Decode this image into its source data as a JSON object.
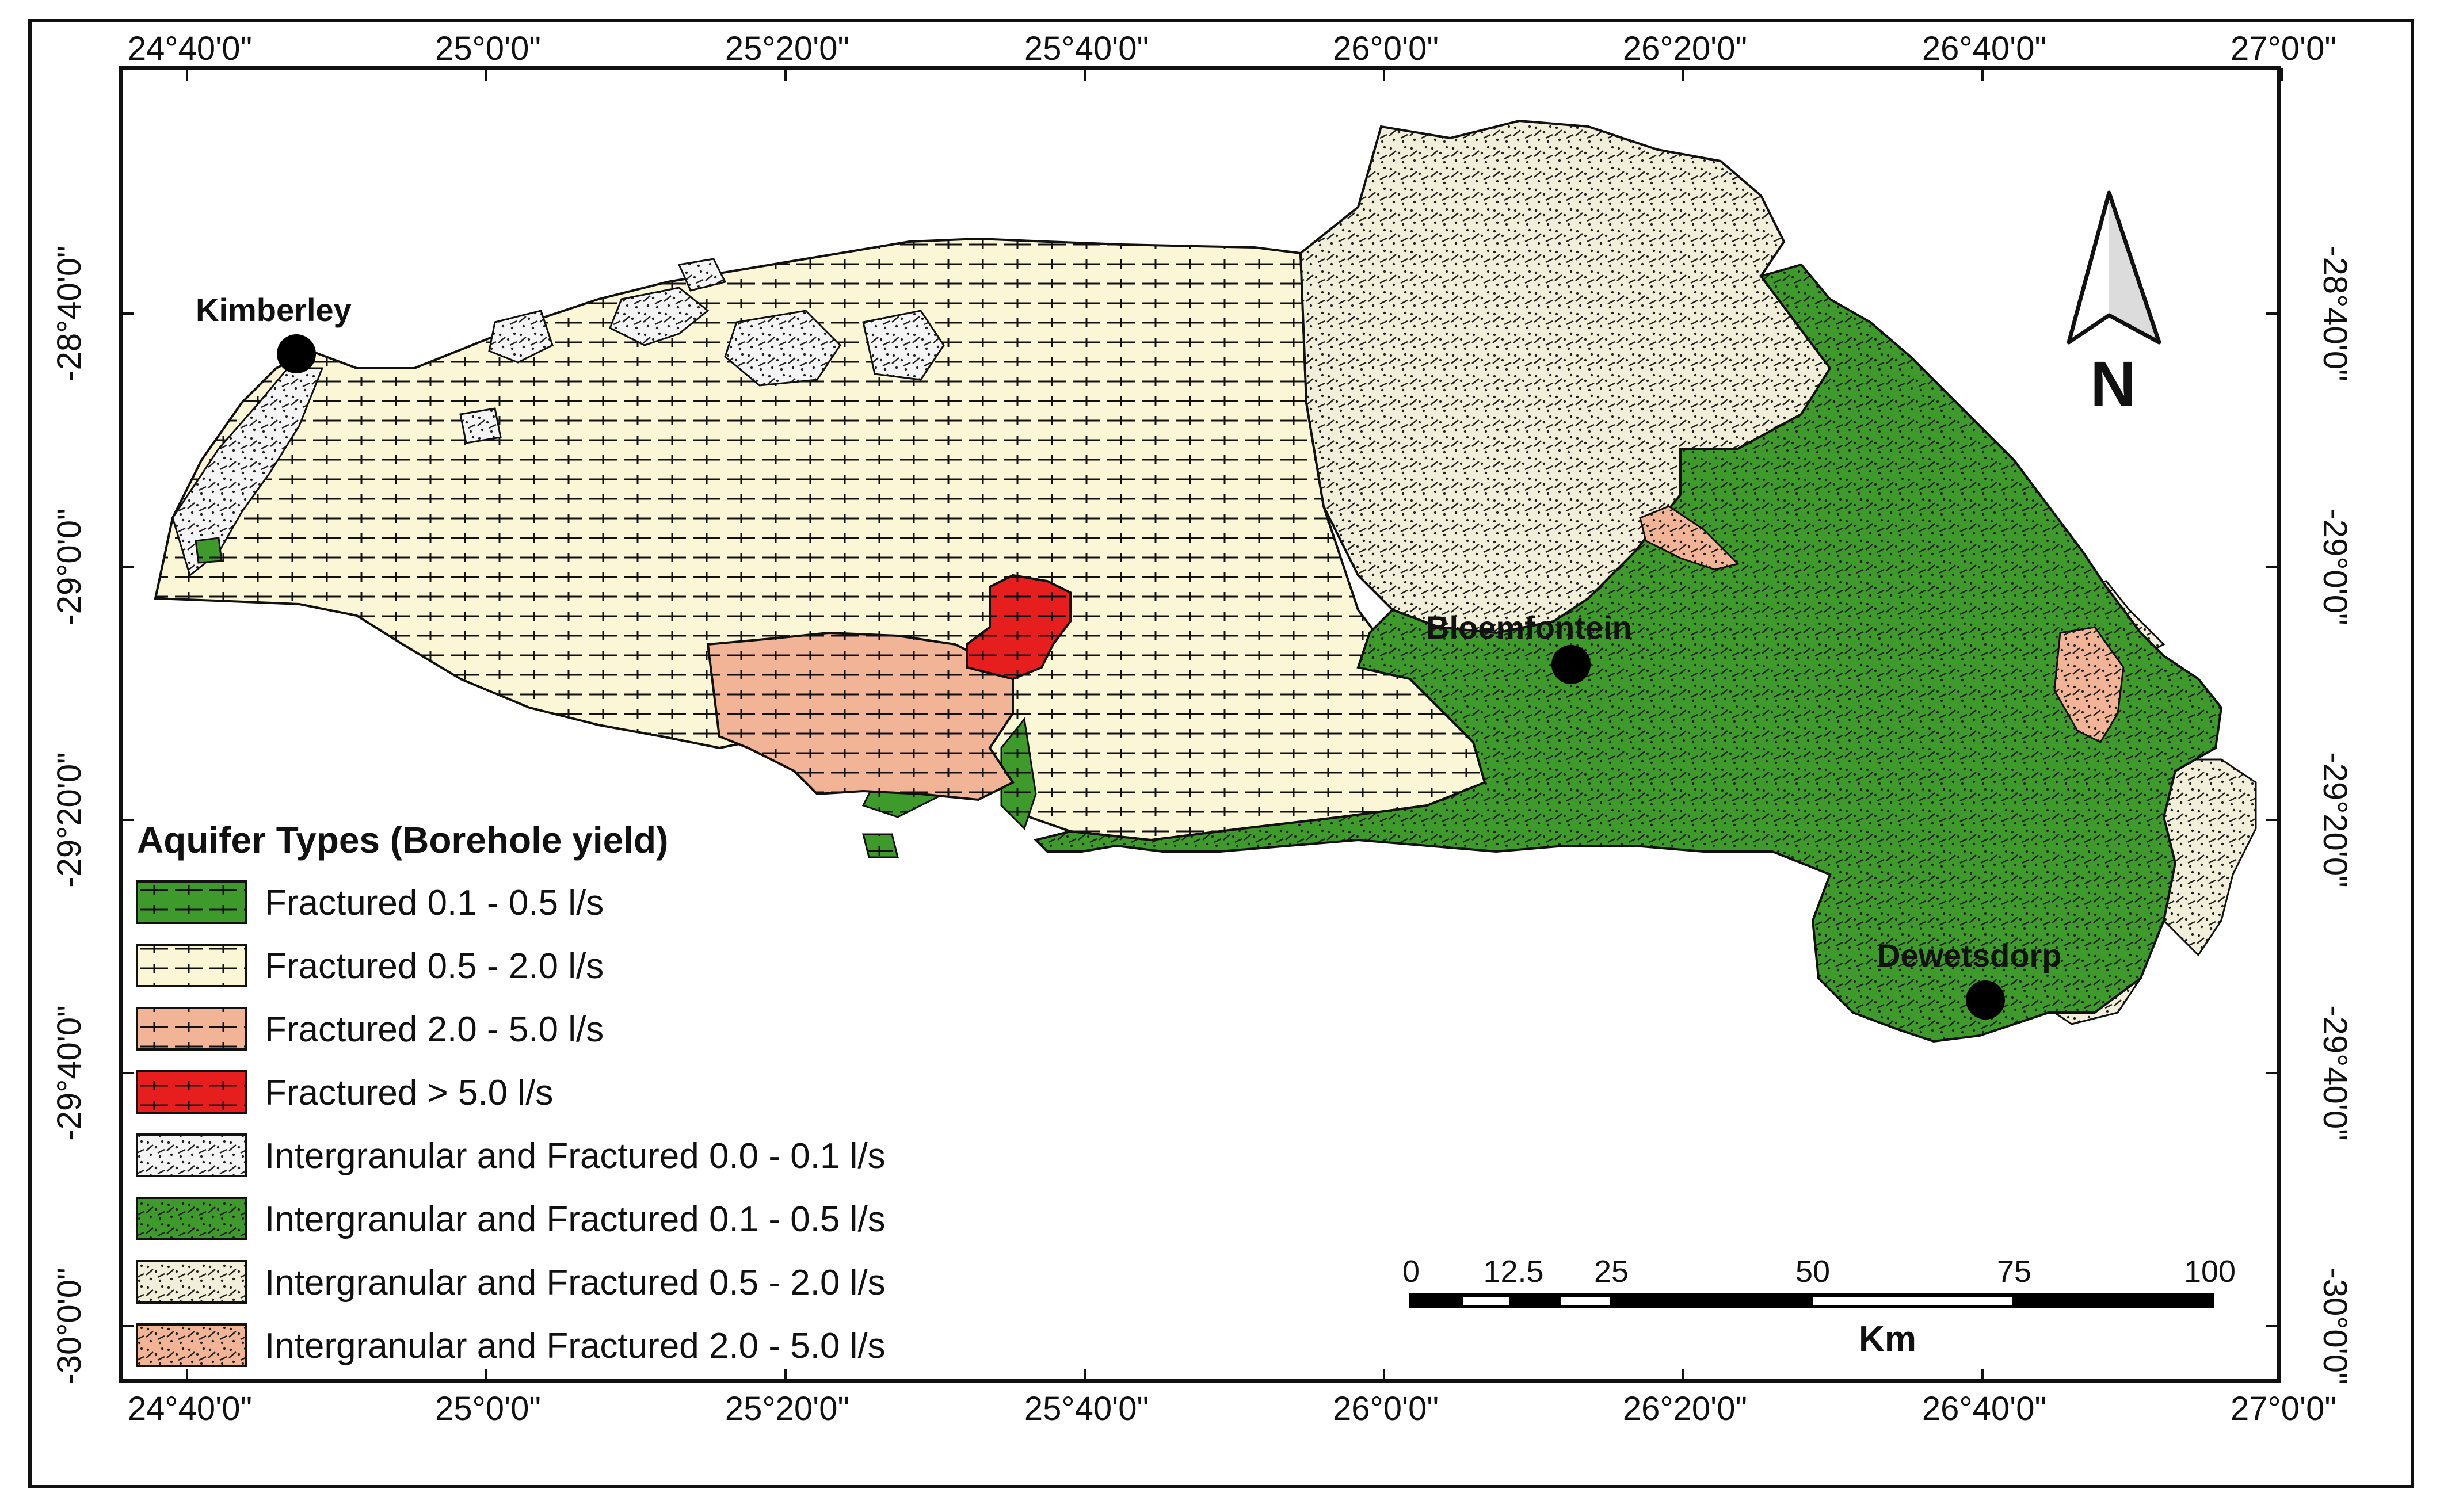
{
  "map": {
    "coordinate_labels": {
      "longitudes": [
        "24°40'0\"",
        "25°0'0\"",
        "25°20'0\"",
        "25°40'0\"",
        "26°0'0\"",
        "26°20'0\"",
        "26°40'0\"",
        "27°0'0\""
      ],
      "latitudes": [
        "-28°40'0\"",
        "-29°0'0\"",
        "-29°20'0\"",
        "-29°40'0\"",
        "-30°0'0\""
      ]
    },
    "cities": [
      {
        "name": "Kimberley"
      },
      {
        "name": "Bloemfontein"
      },
      {
        "name": "Dewetsdorp"
      }
    ],
    "legend": {
      "title": "Aquifer Types (Borehole yield)",
      "items": [
        {
          "label": "Fractured 0.1 - 0.5  l/s",
          "color": "#3e9a2a",
          "pattern": "fractured"
        },
        {
          "label": "Fractured 0.5 - 2.0 l/s",
          "color": "#fbf6d6",
          "pattern": "fractured"
        },
        {
          "label": "Fractured 2.0 - 5.0 l/s",
          "color": "#f2b497",
          "pattern": "fractured"
        },
        {
          "label": "Fractured > 5.0 l/s",
          "color": "#e61e1e",
          "pattern": "fractured"
        },
        {
          "label": "Intergranular and Fractured 0.0 - 0.1 l/s",
          "color": "#f4f4f4",
          "pattern": "intergranular"
        },
        {
          "label": "Intergranular and Fractured 0.1 - 0.5 l/s",
          "color": "#3e9a2a",
          "pattern": "intergranular"
        },
        {
          "label": "Intergranular and Fractured 0.5 - 2.0 l/s",
          "color": "#f1eed9",
          "pattern": "intergranular"
        },
        {
          "label": "Intergranular and Fractured 2.0 - 5.0 l/s",
          "color": "#f2b497",
          "pattern": "intergranular"
        }
      ]
    },
    "scale_bar": {
      "ticks": [
        "0",
        "12.5",
        "25",
        "50",
        "75",
        "100"
      ],
      "unit": "Km"
    },
    "north_arrow": {
      "label": "N"
    }
  }
}
